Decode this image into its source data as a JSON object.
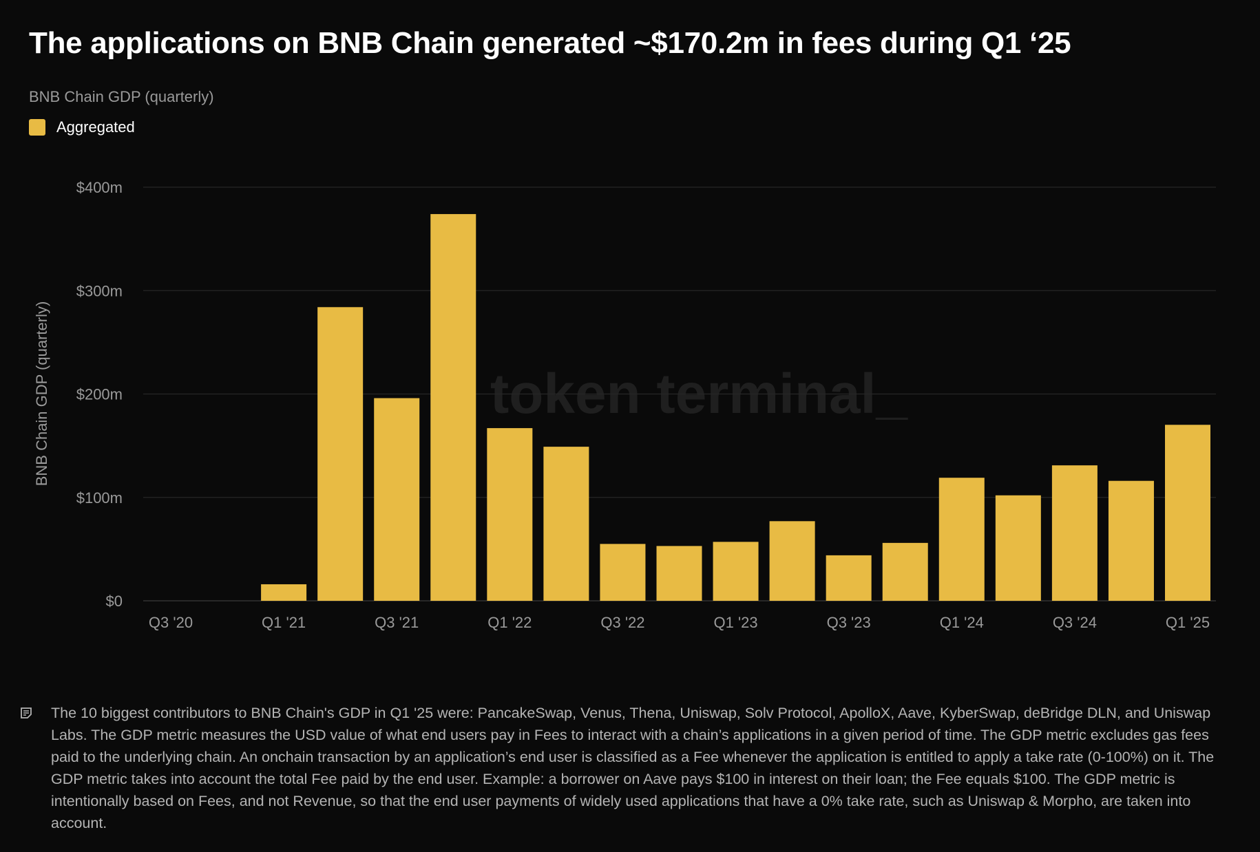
{
  "title": "The applications on BNB Chain generated ~$170.2m in fees during Q1 ‘25",
  "subtitle": "BNB Chain GDP (quarterly)",
  "watermark": "token terminal_",
  "colors": {
    "bar": "#e8bb44",
    "background": "#0a0a0a",
    "grid": "#262626"
  },
  "note_icon": "note-icon",
  "note": "The 10 biggest contributors to BNB Chain's GDP in Q1 '25 were: PancakeSwap, Venus, Thena, Uniswap, Solv Protocol, ApolloX, Aave, KyberSwap, deBridge DLN, and Uniswap Labs. The GDP metric measures the USD value of what end users pay in Fees to interact with a chain’s applications in a given period of time. The GDP metric excludes gas fees paid to the underlying chain. An onchain transaction by an application’s end user is classified as a Fee whenever the application is entitled to apply a take rate (0-100%) on it. The GDP metric takes into account the total Fee paid by the end user. Example: a borrower on Aave pays $100 in interest on their loan; the Fee equals $100. The GDP metric is intentionally based on Fees, and not Revenue, so that the end user payments of widely used applications that have a 0% take rate, such as Uniswap & Morpho, are taken into account.",
  "chart_data": {
    "type": "bar",
    "title": "The applications on BNB Chain generated ~$170.2m in fees during Q1 ‘25",
    "subtitle": "BNB Chain GDP (quarterly)",
    "ylabel": "BNB Chain GDP (quarterly)",
    "xlabel": "",
    "legend": [
      {
        "name": "Aggregated",
        "color": "#e8bb44"
      }
    ],
    "legend_placement": "top-left",
    "grid": true,
    "ylim": [
      0,
      400
    ],
    "yticks": [
      0,
      100,
      200,
      300,
      400
    ],
    "ytick_labels": [
      "$0",
      "$100m",
      "$200m",
      "$300m",
      "$400m"
    ],
    "categories": [
      "Q3 '20",
      "Q4 '20",
      "Q1 '21",
      "Q2 '21",
      "Q3 '21",
      "Q4 '21",
      "Q1 '22",
      "Q2 '22",
      "Q3 '22",
      "Q4 '22",
      "Q1 '23",
      "Q2 '23",
      "Q3 '23",
      "Q4 '23",
      "Q1 '24",
      "Q2 '24",
      "Q3 '24",
      "Q4 '24",
      "Q1 '25"
    ],
    "xtick_labels": [
      "Q3 '20",
      "Q1 '21",
      "Q3 '21",
      "Q1 '22",
      "Q3 '22",
      "Q1 '23",
      "Q3 '23",
      "Q1 '24",
      "Q3 '24",
      "Q1 '25"
    ],
    "series": [
      {
        "name": "Aggregated",
        "values": [
          0,
          0,
          16,
          284,
          196,
          374,
          167,
          149,
          55,
          53,
          57,
          77,
          44,
          56,
          119,
          102,
          131,
          116,
          170.2
        ]
      }
    ]
  }
}
